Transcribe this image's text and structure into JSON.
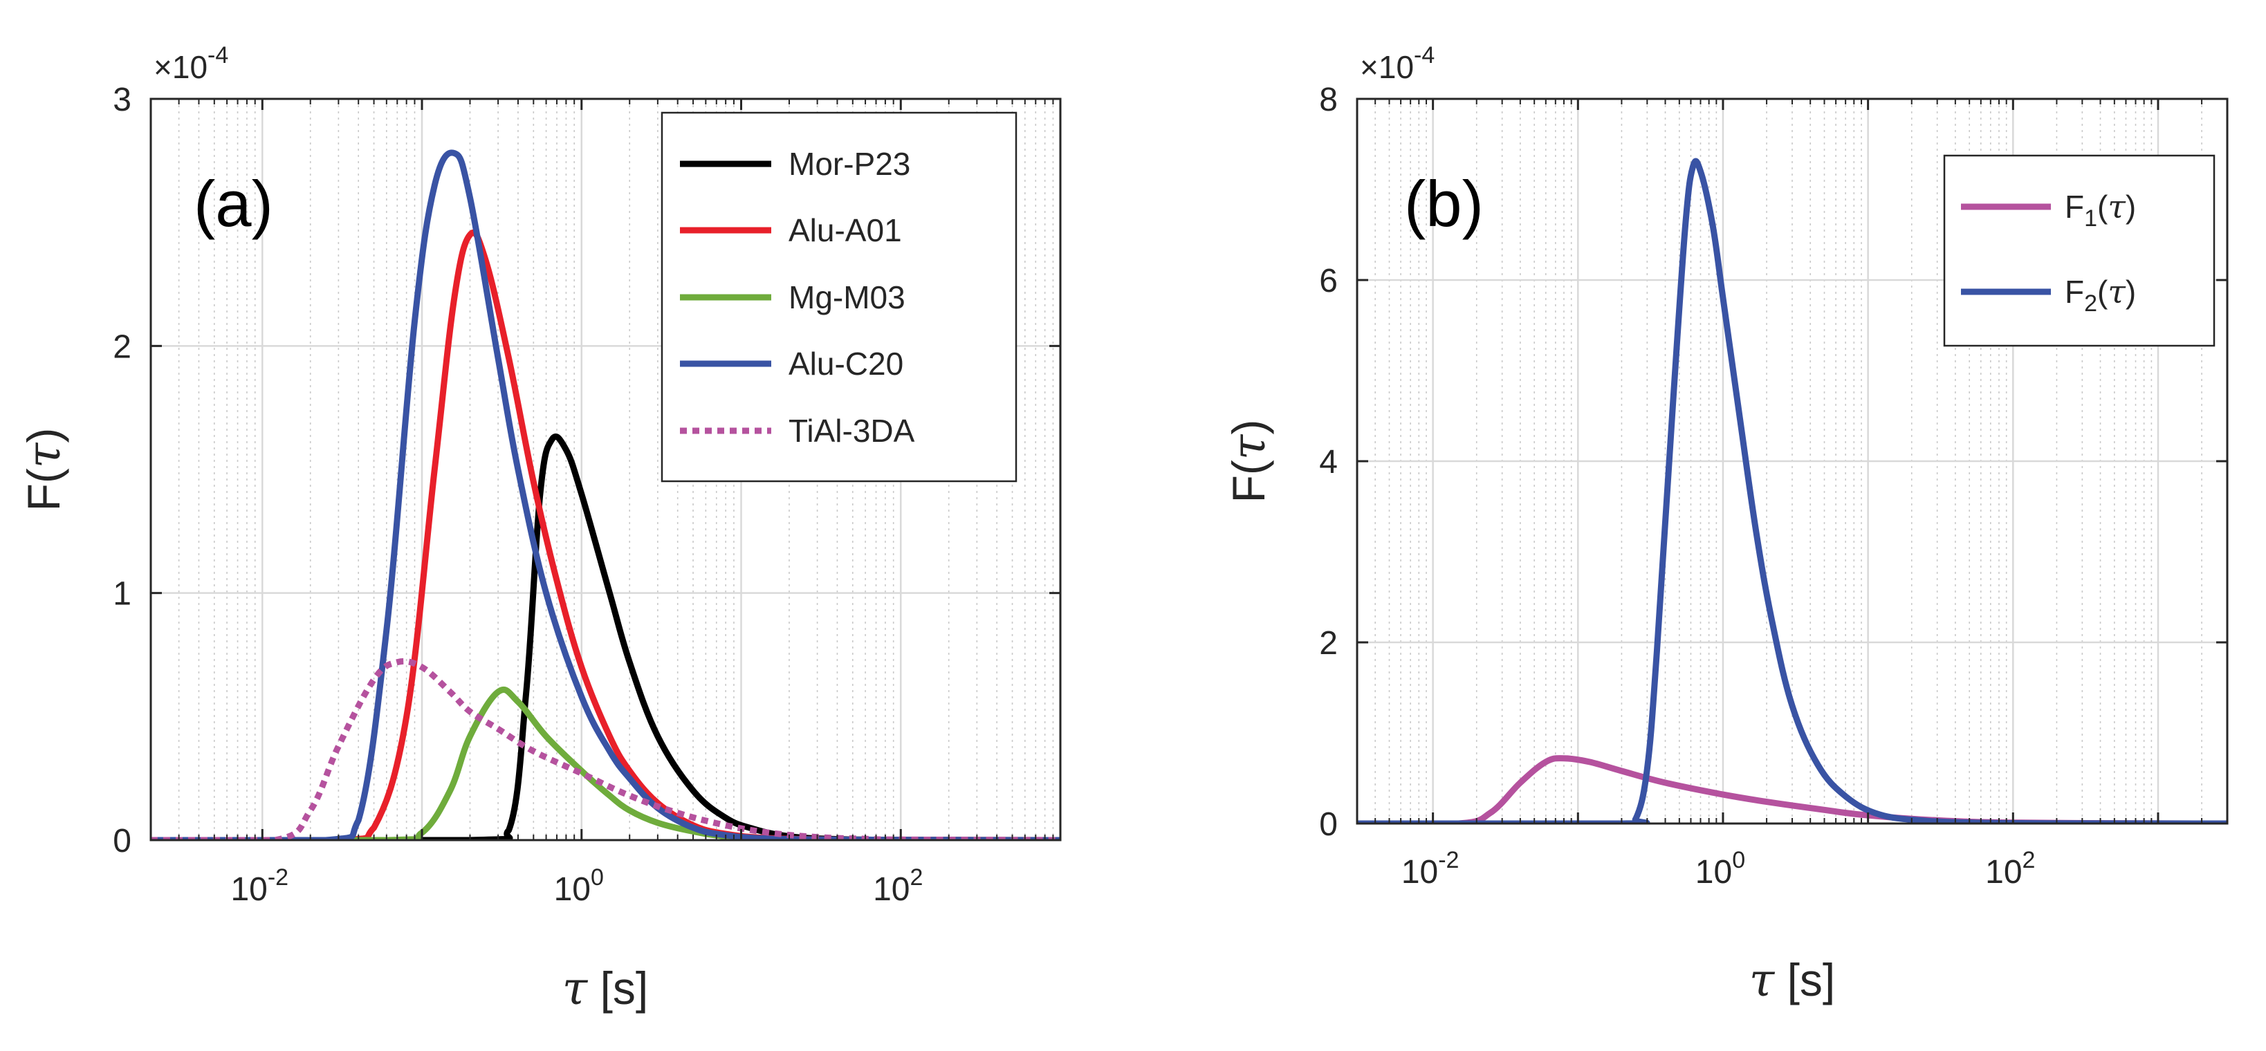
{
  "chart_data": [
    {
      "type": "line",
      "panel_tag": "(a)",
      "xlabel_sym": "τ",
      "xlabel_unit": " [s]",
      "ylabel_prefix": "F(",
      "ylabel_sym": "τ",
      "ylabel_suffix": ")",
      "y_exponent": "×10",
      "y_exponent_power": "-4",
      "xscale": "log",
      "xlim": [
        0.002,
        1000
      ],
      "ylim": [
        0,
        3
      ],
      "yticks": [
        0,
        1,
        2,
        3
      ],
      "xticks": [
        {
          "value": 0.01,
          "base": "10",
          "exp": "-2"
        },
        {
          "value": 1,
          "base": "10",
          "exp": "0"
        },
        {
          "value": 100,
          "base": "10",
          "exp": "2"
        }
      ],
      "grid": "major and minor",
      "legend_position": "top-right",
      "series": [
        {
          "name": "Mor-P23",
          "color": "#000000",
          "dash": "solid",
          "x": [
            0.002,
            0.2,
            0.35,
            0.45,
            0.55,
            0.65,
            0.8,
            1.0,
            1.5,
            2,
            3,
            5,
            8,
            12,
            20,
            40,
            100,
            1000
          ],
          "y": [
            0,
            0,
            0.04,
            0.6,
            1.4,
            1.62,
            1.58,
            1.4,
            1.0,
            0.72,
            0.42,
            0.2,
            0.09,
            0.045,
            0.015,
            0.004,
            0.001,
            0
          ]
        },
        {
          "name": "Alu-A01",
          "color": "#e8202a",
          "dash": "solid",
          "x": [
            0.002,
            0.03,
            0.05,
            0.08,
            0.12,
            0.16,
            0.2,
            0.25,
            0.35,
            0.5,
            0.7,
            1.0,
            1.5,
            2,
            3,
            5,
            8,
            15,
            40,
            100,
            1000
          ],
          "y": [
            0,
            0,
            0.05,
            0.5,
            1.5,
            2.2,
            2.45,
            2.35,
            1.95,
            1.45,
            1.05,
            0.7,
            0.42,
            0.28,
            0.15,
            0.06,
            0.025,
            0.008,
            0.002,
            0.001,
            0
          ]
        },
        {
          "name": "Mg-M03",
          "color": "#6fac3c",
          "dash": "solid",
          "x": [
            0.002,
            0.06,
            0.1,
            0.15,
            0.2,
            0.3,
            0.4,
            0.6,
            1.0,
            1.5,
            2,
            3,
            5,
            8,
            15,
            40,
            100,
            1000
          ],
          "y": [
            0,
            0,
            0.03,
            0.2,
            0.42,
            0.6,
            0.56,
            0.42,
            0.28,
            0.18,
            0.12,
            0.07,
            0.035,
            0.015,
            0.005,
            0.001,
            0,
            0
          ]
        },
        {
          "name": "Alu-C20",
          "color": "#3953a4",
          "dash": "solid",
          "x": [
            0.002,
            0.025,
            0.04,
            0.06,
            0.09,
            0.12,
            0.16,
            0.2,
            0.3,
            0.4,
            0.6,
            1.0,
            1.5,
            2,
            3,
            5,
            8,
            15,
            40,
            100,
            1000
          ],
          "y": [
            0,
            0,
            0.08,
            0.85,
            2.1,
            2.65,
            2.78,
            2.6,
            1.95,
            1.5,
            1.0,
            0.58,
            0.36,
            0.25,
            0.13,
            0.05,
            0.02,
            0.006,
            0.002,
            0.001,
            0
          ]
        },
        {
          "name": "TiAl-3DA",
          "color": "#b5529e",
          "dash": "dot",
          "x": [
            0.002,
            0.012,
            0.02,
            0.03,
            0.05,
            0.07,
            0.1,
            0.15,
            0.2,
            0.3,
            0.5,
            1.0,
            2,
            4,
            8,
            15,
            30,
            60,
            100,
            1000
          ],
          "y": [
            0,
            0,
            0.12,
            0.38,
            0.65,
            0.72,
            0.7,
            0.6,
            0.52,
            0.45,
            0.36,
            0.27,
            0.18,
            0.11,
            0.06,
            0.03,
            0.012,
            0.005,
            0.002,
            0
          ]
        }
      ]
    },
    {
      "type": "line",
      "panel_tag": "(b)",
      "xlabel_sym": "τ",
      "xlabel_unit": " [s]",
      "ylabel_prefix": "F(",
      "ylabel_sym": "τ",
      "ylabel_suffix": ")",
      "y_exponent": "×10",
      "y_exponent_power": "-4",
      "xscale": "log",
      "xlim": [
        0.003,
        3000
      ],
      "ylim": [
        0,
        8
      ],
      "yticks": [
        0,
        2,
        4,
        6,
        8
      ],
      "xticks": [
        {
          "value": 0.01,
          "base": "10",
          "exp": "-2"
        },
        {
          "value": 1,
          "base": "10",
          "exp": "0"
        },
        {
          "value": 100,
          "base": "10",
          "exp": "2"
        }
      ],
      "grid": "major and minor",
      "legend_position": "top-right",
      "series": [
        {
          "name_main": "F",
          "name_sub": "1",
          "name_paren_open": "(",
          "name_sym": "τ",
          "name_paren_close": ")",
          "color": "#b5529e",
          "dash": "solid",
          "x": [
            0.003,
            0.015,
            0.025,
            0.04,
            0.06,
            0.08,
            0.12,
            0.2,
            0.4,
            1.0,
            2,
            5,
            10,
            30,
            100,
            1000,
            3000
          ],
          "y": [
            0,
            0,
            0.12,
            0.45,
            0.68,
            0.72,
            0.68,
            0.58,
            0.45,
            0.32,
            0.24,
            0.15,
            0.09,
            0.035,
            0.01,
            0.001,
            0
          ]
        },
        {
          "name_main": "F",
          "name_sub": "2",
          "name_paren_open": "(",
          "name_sym": "τ",
          "name_paren_close": ")",
          "color": "#3953a4",
          "dash": "solid",
          "x": [
            0.003,
            0.2,
            0.25,
            0.3,
            0.35,
            0.45,
            0.55,
            0.62,
            0.7,
            0.85,
            1.0,
            1.3,
            1.7,
            2.2,
            3,
            4.5,
            7,
            12,
            25,
            60,
            200,
            3000
          ],
          "y": [
            0,
            0,
            0.05,
            0.6,
            1.9,
            4.6,
            6.6,
            7.25,
            7.2,
            6.6,
            5.8,
            4.5,
            3.2,
            2.2,
            1.3,
            0.65,
            0.3,
            0.1,
            0.03,
            0.008,
            0.002,
            0
          ]
        }
      ]
    }
  ]
}
